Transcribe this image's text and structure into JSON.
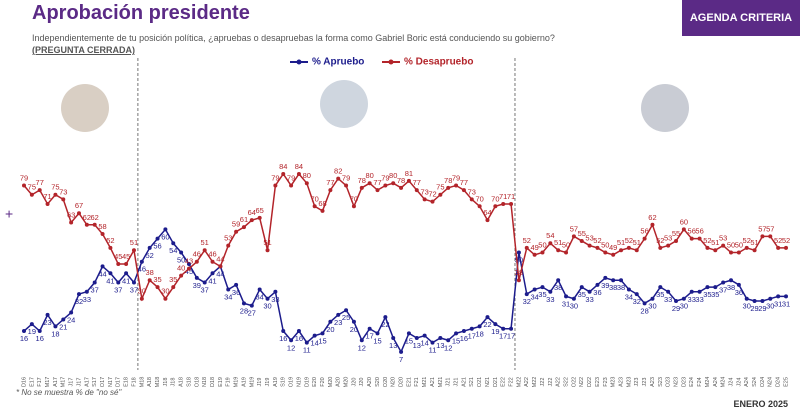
{
  "header": {
    "title": "Aprobación presidente",
    "subtitle": "Independientemente de tu posición política, ¿apruebas o desapruebas la forma como Gabriel Boric está conduciendo su gobierno?",
    "subtitle_note": "(PREGUNTA CERRADA)",
    "button": "AGENDA CRITERIA"
  },
  "chart_data": {
    "type": "line",
    "categories": [
      "D16",
      "E17",
      "F17",
      "M17",
      "A17",
      "M17",
      "J17",
      "J17",
      "A17",
      "S17",
      "O17",
      "N17",
      "D17",
      "E18",
      "F18",
      "M18",
      "A18",
      "M18",
      "J18",
      "J18",
      "A18",
      "S18",
      "O18",
      "N18",
      "D18",
      "E19",
      "F19",
      "M19",
      "A19",
      "M19",
      "J19",
      "J19",
      "A19",
      "S19",
      "O19",
      "N19",
      "D19",
      "E20",
      "F20",
      "M20",
      "A20",
      "M20",
      "J20",
      "J20",
      "A20",
      "S20",
      "O20",
      "N20",
      "D20",
      "E21",
      "F21",
      "M21",
      "A21",
      "M21",
      "J21",
      "J21",
      "A21",
      "S21",
      "O21",
      "N21",
      "D21",
      "E22",
      "F22",
      "M22",
      "A22",
      "M22",
      "J22",
      "J22",
      "A22",
      "S22",
      "O22",
      "N22",
      "D22",
      "E23",
      "F23",
      "M23",
      "A23",
      "M23",
      "J23",
      "J23",
      "A23",
      "S23",
      "O23",
      "N23",
      "D23",
      "E24",
      "F24",
      "M24",
      "A24",
      "M24",
      "J24",
      "J24",
      "A24",
      "S24",
      "O24",
      "N24",
      "D24",
      "E25"
    ],
    "series": [
      {
        "name": "% Apruebo",
        "color": "#1c1c8c",
        "values": [
          16,
          19,
          16,
          23,
          18,
          21,
          24,
          32,
          33,
          37,
          44,
          41,
          37,
          41,
          37,
          46,
          52,
          56,
          60,
          54,
          50,
          45,
          39,
          37,
          41,
          44,
          34,
          36,
          28,
          27,
          34,
          30,
          33,
          16,
          12,
          16,
          11,
          14,
          15,
          20,
          23,
          25,
          20,
          12,
          17,
          15,
          22,
          13,
          7,
          15,
          13,
          14,
          11,
          13,
          12,
          15,
          16,
          17,
          18,
          22,
          19,
          17,
          17,
          50,
          32,
          34,
          35,
          33,
          38,
          31,
          30,
          35,
          33,
          36,
          39,
          38,
          38,
          34,
          32,
          28,
          30,
          35,
          33,
          29,
          30,
          33,
          33,
          35,
          35,
          37,
          38,
          36,
          30,
          29,
          29,
          30,
          31,
          31
        ]
      },
      {
        "name": "% Desapruebo",
        "color": "#b3242a",
        "values": [
          79,
          75,
          77,
          71,
          75,
          73,
          63,
          67,
          62,
          62,
          58,
          52,
          45,
          45,
          51,
          30,
          38,
          35,
          30,
          35,
          40,
          43,
          46,
          51,
          46,
          44,
          53,
          59,
          61,
          64,
          65,
          51,
          79,
          84,
          79,
          84,
          80,
          70,
          68,
          77,
          82,
          79,
          70,
          78,
          80,
          77,
          79,
          80,
          78,
          81,
          77,
          73,
          72,
          75,
          78,
          79,
          77,
          73,
          70,
          64,
          70,
          71,
          71,
          38,
          52,
          49,
          50,
          54,
          51,
          50,
          57,
          55,
          53,
          52,
          50,
          49,
          51,
          52,
          51,
          56,
          62,
          52,
          53,
          55,
          60,
          56,
          56,
          52,
          51,
          53,
          50,
          50,
          52,
          51,
          57,
          57,
          52,
          52
        ]
      }
    ]
  },
  "footer": {
    "note": "* No se muestra % de \"no sé\"",
    "date": "ENERO 2025"
  }
}
